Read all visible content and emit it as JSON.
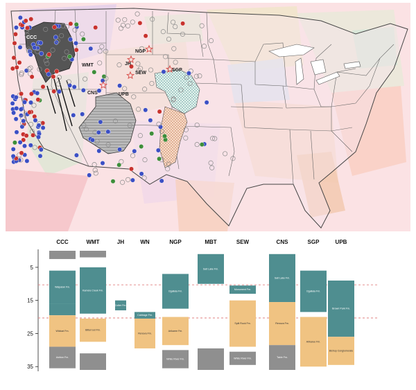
{
  "map": {
    "map_labels": [
      {
        "id": "CCC",
        "text": "CCC"
      },
      {
        "id": "WMT",
        "text": "WMT"
      },
      {
        "id": "JH",
        "text": "JH"
      },
      {
        "id": "NGP",
        "text": "NGP"
      },
      {
        "id": "SEW",
        "text": "SEW"
      },
      {
        "id": "SGP",
        "text": "SGP"
      },
      {
        "id": "CNS",
        "text": "CNS"
      },
      {
        "id": "UPB",
        "text": "UPB"
      }
    ],
    "colors": {
      "volcanic_field": "#555555",
      "basin_hatch": "#999999",
      "stipple_blue": "#5e9fa5",
      "stipple_orange": "#d98b6a",
      "site_blue": "#3b4fc4",
      "site_red": "#c8322e",
      "site_green": "#3e8e3a",
      "site_open": "#bfbfbf",
      "star": "#d9534f"
    }
  },
  "chart_data": {
    "type": "table",
    "xcategories": [
      "CCC",
      "WMT",
      "JH",
      "WN",
      "NGP",
      "MBT",
      "SEW",
      "CNS",
      "SGP",
      "UPB"
    ],
    "yticks": [
      5,
      15,
      25,
      35
    ],
    "ylim": [
      0,
      36
    ],
    "reference_lines": [
      10.3,
      20.3
    ],
    "colors": {
      "teal": "#4f8e90",
      "orange": "#f0c382",
      "gray": "#8f8f8f"
    },
    "units": [
      {
        "col": 0,
        "top": 0,
        "bottom": 2.5,
        "color": "gray",
        "label": ""
      },
      {
        "col": 0,
        "top": 6,
        "bottom": 16,
        "color": "teal",
        "label": "Walpaluk Fm."
      },
      {
        "col": 0,
        "top": 16,
        "bottom": 19.5,
        "color": "teal",
        "label": ""
      },
      {
        "col": 0,
        "top": 19.5,
        "bottom": 29,
        "color": "orange",
        "label": "Wildcat Fm."
      },
      {
        "col": 0,
        "top": 29,
        "bottom": 35.5,
        "color": "gray",
        "label": "Ashton Fm."
      },
      {
        "col": 1,
        "top": 0,
        "bottom": 2,
        "color": "gray",
        "label": ""
      },
      {
        "col": 1,
        "top": 5,
        "bottom": 19,
        "color": "teal",
        "label": "Kamela Creek Fm."
      },
      {
        "col": 1,
        "top": 20.5,
        "bottom": 27.5,
        "color": "orange",
        "label": "Bitterroot Fm."
      },
      {
        "col": 1,
        "top": 31,
        "bottom": 36,
        "color": "gray",
        "label": ""
      },
      {
        "col": 2,
        "top": 15,
        "bottom": 18,
        "color": "teal",
        "label": "Colter Fm."
      },
      {
        "col": 3,
        "top": 18.5,
        "bottom": 20.5,
        "color": "teal",
        "label": "Cabbage Fm."
      },
      {
        "col": 3,
        "top": 20.5,
        "bottom": 29.5,
        "color": "orange",
        "label": "Renova Fm."
      },
      {
        "col": 4,
        "top": 7,
        "bottom": 17.5,
        "color": "teal",
        "label": "Ogallala Fm."
      },
      {
        "col": 4,
        "top": 20,
        "bottom": 28.5,
        "color": "orange",
        "label": "Arikaree Fm."
      },
      {
        "col": 4,
        "top": 30,
        "bottom": 35.5,
        "color": "gray",
        "label": "White River Fm."
      },
      {
        "col": 5,
        "top": 1,
        "bottom": 10,
        "color": "teal",
        "label": "Salt Lake Fm."
      },
      {
        "col": 5,
        "top": 29.5,
        "bottom": 36,
        "color": "gray",
        "label": ""
      },
      {
        "col": 6,
        "top": 10.5,
        "bottom": 13,
        "color": "teal",
        "label": "Monument Fm."
      },
      {
        "col": 6,
        "top": 15,
        "bottom": 29,
        "color": "orange",
        "label": "Split Rock Fm."
      },
      {
        "col": 6,
        "top": 30.5,
        "bottom": 34.5,
        "color": "gray",
        "label": "White River Fm."
      },
      {
        "col": 7,
        "top": 1,
        "bottom": 15.5,
        "color": "teal",
        "label": "Salt Lake Fm."
      },
      {
        "col": 7,
        "top": 15.5,
        "bottom": 28.5,
        "color": "orange",
        "label": "Renova Fm."
      },
      {
        "col": 7,
        "top": 28.5,
        "bottom": 36,
        "color": "gray",
        "label": "Table Fm."
      },
      {
        "col": 8,
        "top": 6,
        "bottom": 18.5,
        "color": "teal",
        "label": "Ogallala Fm."
      },
      {
        "col": 8,
        "top": 20,
        "bottom": 35,
        "color": "orange",
        "label": "Arikaree Fm."
      },
      {
        "col": 9,
        "top": 9,
        "bottom": 26,
        "color": "teal",
        "label": "Brown Park Fm."
      },
      {
        "col": 9,
        "top": 26,
        "bottom": 34.5,
        "color": "orange",
        "label": "Bishop Conglomerate"
      }
    ]
  }
}
